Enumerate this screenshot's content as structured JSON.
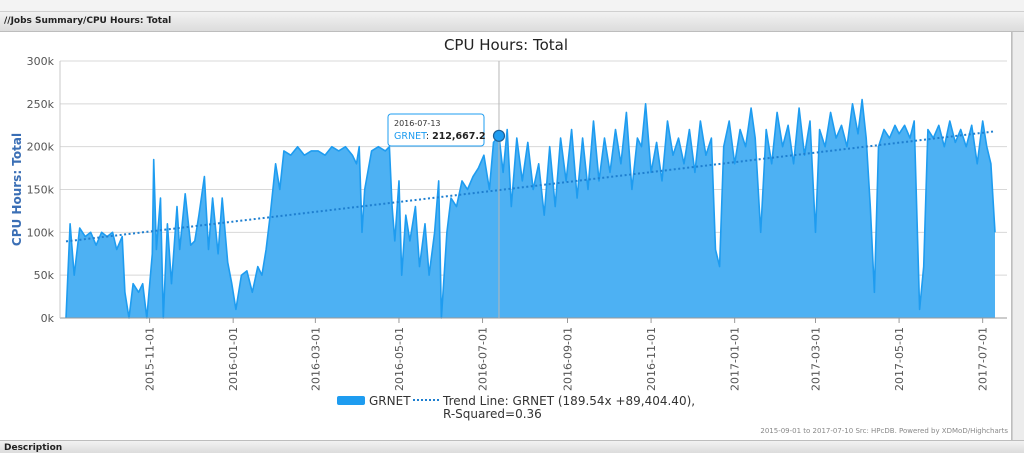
{
  "panel": {
    "title": "//Jobs Summary/CPU Hours: Total",
    "description_label": "Description"
  },
  "credits": "2015-09-01 to 2017-07-10 Src: HPcDB. Powered by XDMoD/Highcharts",
  "tooltip": {
    "date": "2016-07-13",
    "series": "GRNET",
    "value": "212,667.2"
  },
  "colors": {
    "series": "#1e9cf0",
    "series_fill": "#4db1f3",
    "trend": "#1e7fd0",
    "axis_title": "#3b6fb5"
  },
  "chart_data": {
    "type": "area",
    "title": "CPU Hours: Total",
    "ylabel": "CPU Hours: Total",
    "ylim": [
      0,
      300000
    ],
    "yticks": [
      0,
      50000,
      100000,
      150000,
      200000,
      250000,
      300000
    ],
    "ytick_labels": [
      "0k",
      "50k",
      "100k",
      "150k",
      "200k",
      "250k",
      "300k"
    ],
    "xlim": [
      "2015-09-01",
      "2017-07-10"
    ],
    "xticks": [
      "2015-11-01",
      "2016-01-01",
      "2016-03-01",
      "2016-05-01",
      "2016-07-01",
      "2016-09-01",
      "2016-11-01",
      "2017-01-01",
      "2017-03-01",
      "2017-05-01",
      "2017-07-01"
    ],
    "legend": {
      "placement": "bottom-center"
    },
    "series": [
      {
        "name": "GRNET",
        "points": [
          [
            "2015-09-01",
            0
          ],
          [
            "2015-09-04",
            110000
          ],
          [
            "2015-09-07",
            50000
          ],
          [
            "2015-09-11",
            105000
          ],
          [
            "2015-09-15",
            95000
          ],
          [
            "2015-09-19",
            100000
          ],
          [
            "2015-09-23",
            85000
          ],
          [
            "2015-09-27",
            100000
          ],
          [
            "2015-10-01",
            95000
          ],
          [
            "2015-10-05",
            100000
          ],
          [
            "2015-10-08",
            80000
          ],
          [
            "2015-10-12",
            95000
          ],
          [
            "2015-10-14",
            30000
          ],
          [
            "2015-10-17",
            0
          ],
          [
            "2015-10-20",
            40000
          ],
          [
            "2015-10-24",
            30000
          ],
          [
            "2015-10-27",
            40000
          ],
          [
            "2015-10-30",
            0
          ],
          [
            "2015-11-03",
            75000
          ],
          [
            "2015-11-04",
            185000
          ],
          [
            "2015-11-06",
            80000
          ],
          [
            "2015-11-09",
            140000
          ],
          [
            "2015-11-11",
            0
          ],
          [
            "2015-11-14",
            110000
          ],
          [
            "2015-11-17",
            40000
          ],
          [
            "2015-11-21",
            130000
          ],
          [
            "2015-11-23",
            80000
          ],
          [
            "2015-11-27",
            145000
          ],
          [
            "2015-12-01",
            85000
          ],
          [
            "2015-12-04",
            90000
          ],
          [
            "2015-12-07",
            120000
          ],
          [
            "2015-12-11",
            165000
          ],
          [
            "2015-12-14",
            80000
          ],
          [
            "2015-12-17",
            140000
          ],
          [
            "2015-12-21",
            75000
          ],
          [
            "2015-12-24",
            140000
          ],
          [
            "2015-12-28",
            65000
          ],
          [
            "2015-12-31",
            40000
          ],
          [
            "2016-01-03",
            10000
          ],
          [
            "2016-01-07",
            50000
          ],
          [
            "2016-01-11",
            55000
          ],
          [
            "2016-01-15",
            30000
          ],
          [
            "2016-01-19",
            60000
          ],
          [
            "2016-01-22",
            50000
          ],
          [
            "2016-01-25",
            80000
          ],
          [
            "2016-01-28",
            120000
          ],
          [
            "2016-02-01",
            180000
          ],
          [
            "2016-02-04",
            150000
          ],
          [
            "2016-02-07",
            195000
          ],
          [
            "2016-02-12",
            190000
          ],
          [
            "2016-02-17",
            200000
          ],
          [
            "2016-02-22",
            190000
          ],
          [
            "2016-02-27",
            195000
          ],
          [
            "2016-03-03",
            195000
          ],
          [
            "2016-03-08",
            190000
          ],
          [
            "2016-03-13",
            200000
          ],
          [
            "2016-03-18",
            195000
          ],
          [
            "2016-03-23",
            200000
          ],
          [
            "2016-03-28",
            190000
          ],
          [
            "2016-03-31",
            180000
          ],
          [
            "2016-04-02",
            200000
          ],
          [
            "2016-04-04",
            100000
          ],
          [
            "2016-04-06",
            150000
          ],
          [
            "2016-04-11",
            195000
          ],
          [
            "2016-04-16",
            200000
          ],
          [
            "2016-04-21",
            195000
          ],
          [
            "2016-04-24",
            200000
          ],
          [
            "2016-04-26",
            130000
          ],
          [
            "2016-04-28",
            90000
          ],
          [
            "2016-05-01",
            160000
          ],
          [
            "2016-05-03",
            50000
          ],
          [
            "2016-05-06",
            120000
          ],
          [
            "2016-05-09",
            90000
          ],
          [
            "2016-05-13",
            130000
          ],
          [
            "2016-05-16",
            60000
          ],
          [
            "2016-05-20",
            110000
          ],
          [
            "2016-05-23",
            50000
          ],
          [
            "2016-05-27",
            100000
          ],
          [
            "2016-05-30",
            160000
          ],
          [
            "2016-06-01",
            0
          ],
          [
            "2016-06-05",
            100000
          ],
          [
            "2016-06-08",
            140000
          ],
          [
            "2016-06-12",
            130000
          ],
          [
            "2016-06-16",
            160000
          ],
          [
            "2016-06-20",
            150000
          ],
          [
            "2016-06-24",
            165000
          ],
          [
            "2016-06-28",
            175000
          ],
          [
            "2016-07-02",
            190000
          ],
          [
            "2016-07-06",
            150000
          ],
          [
            "2016-07-09",
            205000
          ],
          [
            "2016-07-13",
            212667
          ],
          [
            "2016-07-16",
            170000
          ],
          [
            "2016-07-19",
            220000
          ],
          [
            "2016-07-22",
            130000
          ],
          [
            "2016-07-26",
            210000
          ],
          [
            "2016-07-30",
            160000
          ],
          [
            "2016-08-03",
            205000
          ],
          [
            "2016-08-07",
            150000
          ],
          [
            "2016-08-11",
            180000
          ],
          [
            "2016-08-15",
            120000
          ],
          [
            "2016-08-19",
            200000
          ],
          [
            "2016-08-23",
            130000
          ],
          [
            "2016-08-27",
            210000
          ],
          [
            "2016-08-31",
            160000
          ],
          [
            "2016-09-04",
            220000
          ],
          [
            "2016-09-08",
            140000
          ],
          [
            "2016-09-12",
            210000
          ],
          [
            "2016-09-16",
            150000
          ],
          [
            "2016-09-20",
            230000
          ],
          [
            "2016-09-24",
            160000
          ],
          [
            "2016-09-28",
            210000
          ],
          [
            "2016-10-02",
            170000
          ],
          [
            "2016-10-06",
            220000
          ],
          [
            "2016-10-10",
            180000
          ],
          [
            "2016-10-14",
            240000
          ],
          [
            "2016-10-18",
            150000
          ],
          [
            "2016-10-22",
            210000
          ],
          [
            "2016-10-25",
            200000
          ],
          [
            "2016-10-28",
            250000
          ],
          [
            "2016-11-01",
            170000
          ],
          [
            "2016-11-05",
            205000
          ],
          [
            "2016-11-09",
            160000
          ],
          [
            "2016-11-13",
            230000
          ],
          [
            "2016-11-17",
            190000
          ],
          [
            "2016-11-21",
            210000
          ],
          [
            "2016-11-25",
            180000
          ],
          [
            "2016-11-29",
            220000
          ],
          [
            "2016-12-03",
            170000
          ],
          [
            "2016-12-07",
            230000
          ],
          [
            "2016-12-11",
            190000
          ],
          [
            "2016-12-15",
            210000
          ],
          [
            "2016-12-18",
            80000
          ],
          [
            "2016-12-21",
            60000
          ],
          [
            "2016-12-24",
            200000
          ],
          [
            "2016-12-28",
            230000
          ],
          [
            "2017-01-01",
            180000
          ],
          [
            "2017-01-05",
            220000
          ],
          [
            "2017-01-09",
            200000
          ],
          [
            "2017-01-13",
            245000
          ],
          [
            "2017-01-16",
            210000
          ],
          [
            "2017-01-20",
            100000
          ],
          [
            "2017-01-24",
            220000
          ],
          [
            "2017-01-28",
            180000
          ],
          [
            "2017-02-01",
            240000
          ],
          [
            "2017-02-05",
            200000
          ],
          [
            "2017-02-09",
            225000
          ],
          [
            "2017-02-13",
            180000
          ],
          [
            "2017-02-17",
            245000
          ],
          [
            "2017-02-21",
            190000
          ],
          [
            "2017-02-25",
            230000
          ],
          [
            "2017-03-01",
            100000
          ],
          [
            "2017-03-04",
            220000
          ],
          [
            "2017-03-08",
            200000
          ],
          [
            "2017-03-12",
            240000
          ],
          [
            "2017-03-16",
            210000
          ],
          [
            "2017-03-20",
            225000
          ],
          [
            "2017-03-24",
            200000
          ],
          [
            "2017-03-28",
            250000
          ],
          [
            "2017-04-01",
            215000
          ],
          [
            "2017-04-04",
            255000
          ],
          [
            "2017-04-07",
            210000
          ],
          [
            "2017-04-10",
            130000
          ],
          [
            "2017-04-13",
            30000
          ],
          [
            "2017-04-16",
            200000
          ],
          [
            "2017-04-20",
            220000
          ],
          [
            "2017-04-24",
            210000
          ],
          [
            "2017-04-28",
            225000
          ],
          [
            "2017-05-01",
            215000
          ],
          [
            "2017-05-05",
            225000
          ],
          [
            "2017-05-09",
            210000
          ],
          [
            "2017-05-12",
            230000
          ],
          [
            "2017-05-16",
            10000
          ],
          [
            "2017-05-19",
            60000
          ],
          [
            "2017-05-22",
            220000
          ],
          [
            "2017-05-26",
            210000
          ],
          [
            "2017-05-30",
            225000
          ],
          [
            "2017-06-03",
            200000
          ],
          [
            "2017-06-07",
            230000
          ],
          [
            "2017-06-11",
            205000
          ],
          [
            "2017-06-15",
            220000
          ],
          [
            "2017-06-19",
            200000
          ],
          [
            "2017-06-23",
            225000
          ],
          [
            "2017-06-27",
            180000
          ],
          [
            "2017-07-01",
            230000
          ],
          [
            "2017-07-04",
            200000
          ],
          [
            "2017-07-07",
            180000
          ],
          [
            "2017-07-10",
            100000
          ]
        ]
      },
      {
        "name": "Trend Line: GRNET (189.54x +89,404.40),",
        "name_line2": "R-Squared=0.36",
        "kind": "trend",
        "slope_per_day": 189.54,
        "intercept": 89404.4,
        "r_squared": 0.36
      }
    ]
  }
}
